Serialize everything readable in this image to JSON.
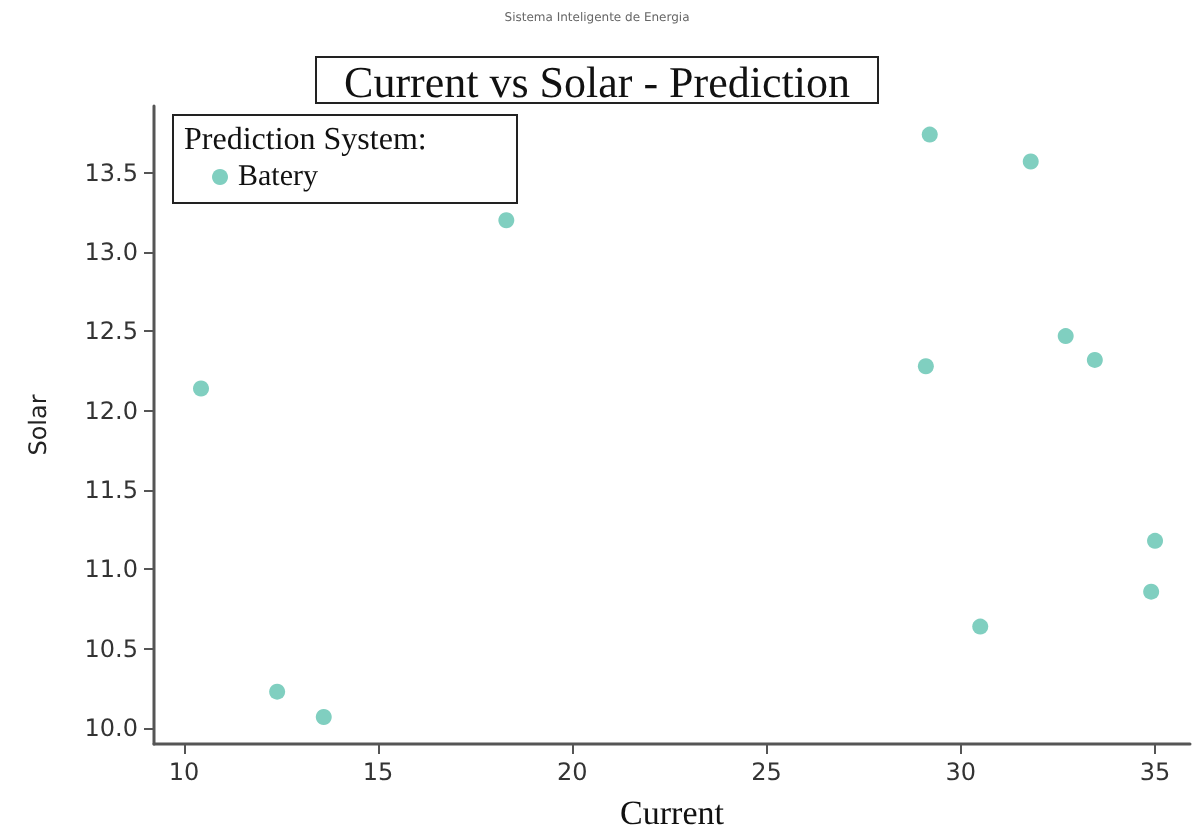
{
  "chart_data": {
    "type": "scatter",
    "title": "Current vs Solar - Prediction",
    "xlabel": "Current",
    "ylabel": "Solar",
    "legend_title": "Prediction System:",
    "annotations": [
      "Sistema Inteligente de Energia"
    ],
    "x": [
      10.44,
      18.3,
      12.4,
      13.6,
      29.2,
      31.8,
      29.1,
      32.7,
      33.45,
      35.0,
      34.9,
      30.5
    ],
    "series": [
      {
        "name": "Batery",
        "color": "#80cfc0",
        "values": [
          12.14,
          13.2,
          10.23,
          10.07,
          13.74,
          13.57,
          12.28,
          12.47,
          12.32,
          11.18,
          10.86,
          10.64
        ]
      }
    ],
    "xlim": [
      9.23,
      35.9
    ],
    "xticks": [
      10,
      15,
      20,
      25,
      30,
      35
    ],
    "ylim": [
      9.9,
      13.92
    ],
    "yticks": [
      {
        "value": 10,
        "label": "10.0"
      },
      10.5,
      {
        "value": 11,
        "label": "11.0"
      },
      11.5,
      {
        "value": 12,
        "label": "12.0"
      },
      12.5,
      {
        "value": 13,
        "label": "13.0"
      },
      13.5
    ],
    "grid": false,
    "legend": "top left",
    "marker": "circle"
  }
}
